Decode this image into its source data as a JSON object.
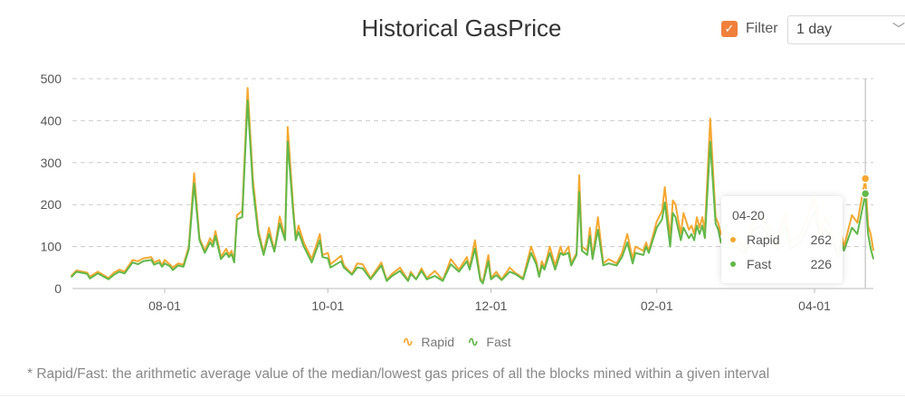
{
  "header": {
    "title": "Historical GasPrice",
    "filter_label": "Filter",
    "filter_checked": true,
    "interval_value": "1 day",
    "checkbox_color": "#f0803c"
  },
  "footnote": "* Rapid/Fast: the arithmetic average value of the median/lowest gas prices of all the blocks mined within a given interval",
  "tooltip": {
    "date": "04-20",
    "rows": [
      {
        "name": "Rapid",
        "value": "262"
      },
      {
        "name": "Fast",
        "value": "226"
      }
    ]
  },
  "chart_data": {
    "type": "line",
    "title": "Historical GasPrice",
    "xlabel": "",
    "ylabel": "",
    "ylim": [
      0,
      500
    ],
    "yticks": [
      "0",
      "100",
      "200",
      "300",
      "400",
      "500"
    ],
    "xticks": [
      "08-01",
      "10-01",
      "12-01",
      "02-01",
      "04-01"
    ],
    "grid": true,
    "legend": "bottom",
    "x": [
      "06-27",
      "06-29",
      "07-03",
      "07-04",
      "07-07",
      "07-11",
      "07-13",
      "07-15",
      "07-17",
      "07-20",
      "07-22",
      "07-24",
      "07-27",
      "07-28",
      "07-30",
      "07-31",
      "08-01",
      "08-03",
      "08-04",
      "08-06",
      "08-08",
      "08-10",
      "08-12",
      "08-14",
      "08-16",
      "08-18",
      "08-19",
      "08-20",
      "08-22",
      "08-24",
      "08-25",
      "08-26",
      "08-27",
      "08-28",
      "08-30",
      "09-01",
      "09-03",
      "09-05",
      "09-07",
      "09-09",
      "09-11",
      "09-13",
      "09-15",
      "09-16",
      "09-18",
      "09-19",
      "09-20",
      "09-22",
      "09-25",
      "09-28",
      "09-29",
      "10-01",
      "10-02",
      "10-06",
      "10-07",
      "10-10",
      "10-12",
      "10-14",
      "10-17",
      "10-21",
      "10-23",
      "10-25",
      "10-28",
      "10-31",
      "11-01",
      "11-03",
      "11-05",
      "11-07",
      "11-10",
      "11-13",
      "11-16",
      "11-19",
      "11-22",
      "11-23",
      "11-25",
      "11-27",
      "11-28",
      "11-30",
      "12-01",
      "12-03",
      "12-05",
      "12-08",
      "12-10",
      "12-13",
      "12-16",
      "12-18",
      "12-19",
      "12-20",
      "12-21",
      "12-23",
      "12-25",
      "12-27",
      "12-28",
      "12-30",
      "12-31",
      "01-02",
      "01-03",
      "01-04",
      "01-06",
      "01-07",
      "01-08",
      "01-10",
      "01-12",
      "01-14",
      "01-17",
      "01-19",
      "01-21",
      "01-23",
      "01-24",
      "01-27",
      "01-28",
      "01-29",
      "02-01",
      "02-03",
      "02-04",
      "02-06",
      "02-07",
      "02-08",
      "02-10",
      "02-11",
      "02-13",
      "02-14",
      "02-15",
      "02-16",
      "02-17",
      "02-18",
      "02-19",
      "02-21",
      "02-23",
      "02-24",
      "02-25",
      "02-28",
      "03-03",
      "03-06",
      "03-09",
      "03-12",
      "03-15",
      "03-18",
      "03-21",
      "03-23",
      "03-27",
      "04-01",
      "04-03",
      "04-05",
      "04-08",
      "04-10",
      "04-11",
      "04-12",
      "04-15",
      "04-17",
      "04-20",
      "04-21",
      "04-22",
      "04-23"
    ],
    "series": [
      {
        "name": "Rapid",
        "color": "#f5a831",
        "values": [
          30,
          43,
          38,
          28,
          40,
          25,
          38,
          45,
          40,
          68,
          65,
          72,
          75,
          62,
          68,
          55,
          68,
          57,
          50,
          60,
          57,
          100,
          275,
          120,
          90,
          120,
          108,
          137,
          75,
          95,
          80,
          90,
          65,
          175,
          185,
          478,
          260,
          140,
          85,
          145,
          90,
          172,
          120,
          385,
          200,
          120,
          150,
          110,
          70,
          130,
          80,
          85,
          58,
          78,
          55,
          35,
          60,
          58,
          25,
          62,
          20,
          35,
          50,
          20,
          40,
          22,
          48,
          25,
          42,
          20,
          70,
          45,
          75,
          50,
          115,
          25,
          15,
          80,
          25,
          40,
          22,
          50,
          38,
          25,
          100,
          65,
          30,
          65,
          50,
          100,
          55,
          100,
          80,
          100,
          60,
          85,
          270,
          100,
          90,
          145,
          75,
          170,
          60,
          70,
          60,
          85,
          130,
          70,
          100,
          90,
          110,
          90,
          160,
          185,
          242,
          120,
          210,
          200,
          130,
          180,
          140,
          150,
          130,
          170,
          145,
          170,
          140,
          405,
          170,
          155,
          130,
          110,
          120,
          95,
          160,
          175,
          140,
          110,
          180,
          110,
          130,
          215,
          130,
          170,
          120,
          80,
          131,
          100,
          175,
          157,
          262,
          150,
          130,
          90
        ]
      },
      {
        "name": "Fast",
        "color": "#62b84a",
        "values": [
          27,
          40,
          35,
          24,
          36,
          22,
          33,
          40,
          36,
          62,
          58,
          65,
          68,
          57,
          62,
          52,
          60,
          53,
          44,
          55,
          52,
          93,
          250,
          115,
          85,
          110,
          100,
          125,
          70,
          85,
          75,
          82,
          62,
          165,
          170,
          448,
          240,
          130,
          80,
          130,
          88,
          155,
          115,
          350,
          185,
          115,
          135,
          100,
          62,
          115,
          75,
          72,
          50,
          65,
          50,
          33,
          50,
          48,
          22,
          55,
          18,
          30,
          42,
          18,
          35,
          22,
          42,
          22,
          30,
          18,
          58,
          40,
          65,
          45,
          95,
          20,
          12,
          65,
          22,
          32,
          20,
          40,
          35,
          22,
          85,
          57,
          28,
          55,
          45,
          85,
          45,
          85,
          80,
          85,
          55,
          80,
          230,
          90,
          80,
          125,
          70,
          140,
          55,
          60,
          55,
          75,
          110,
          60,
          85,
          80,
          100,
          85,
          145,
          165,
          205,
          100,
          180,
          170,
          115,
          145,
          120,
          130,
          115,
          150,
          130,
          150,
          120,
          350,
          155,
          140,
          110,
          95,
          100,
          85,
          140,
          150,
          120,
          95,
          150,
          95,
          110,
          185,
          115,
          145,
          105,
          75,
          113,
          90,
          145,
          130,
          226,
          130,
          95,
          70
        ]
      }
    ]
  }
}
